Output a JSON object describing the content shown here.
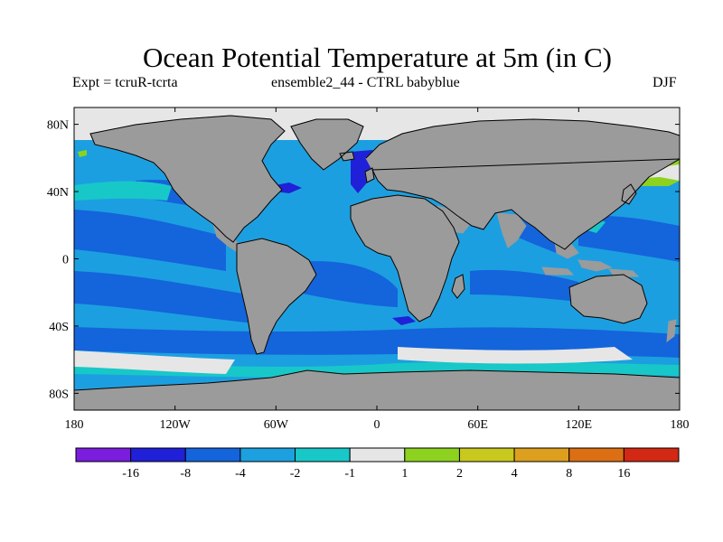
{
  "title": "Ocean Potential Temperature at 5m (in C)",
  "subtitle_left": "Expt = tcruR-tcrta",
  "subtitle_center": "ensemble2_44 - CTRL babyblue",
  "season": "DJF",
  "lat_ticks": [
    {
      "value": 80,
      "label": "80N"
    },
    {
      "value": 40,
      "label": "40N"
    },
    {
      "value": 0,
      "label": "0"
    },
    {
      "value": -40,
      "label": "40S"
    },
    {
      "value": -80,
      "label": "80S"
    }
  ],
  "lon_ticks": [
    {
      "value": -180,
      "label": "180"
    },
    {
      "value": -120,
      "label": "120W"
    },
    {
      "value": -60,
      "label": "60W"
    },
    {
      "value": 0,
      "label": "0"
    },
    {
      "value": 60,
      "label": "60E"
    },
    {
      "value": 120,
      "label": "120E"
    },
    {
      "value": 180,
      "label": "180"
    }
  ],
  "colorbar": {
    "colors": [
      "#7a1ddc",
      "#2020d8",
      "#1464dc",
      "#1ca0e0",
      "#18c8c8",
      "#e6e6e6",
      "#8cd21e",
      "#c8c81e",
      "#dca01e",
      "#dc6e14",
      "#d22814"
    ],
    "labels": [
      "-16",
      "-8",
      "-4",
      "-2",
      "-1",
      "1",
      "2",
      "4",
      "8",
      "16"
    ]
  },
  "colors": {
    "land": "#9b9b9b",
    "coast": "#000000",
    "ice": "#e6e6e6",
    "background": "#ffffff"
  }
}
